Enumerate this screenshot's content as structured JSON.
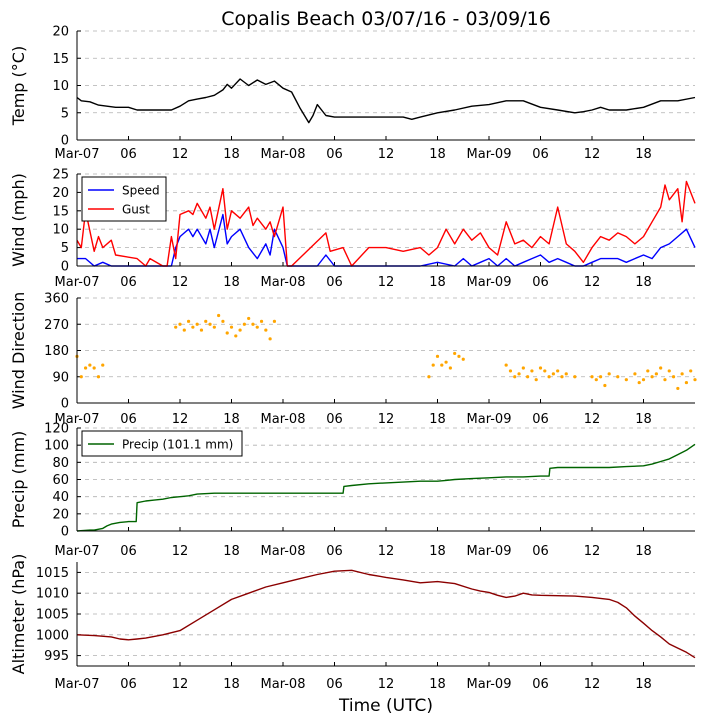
{
  "title": "Copalis Beach 03/07/16 - 03/09/16",
  "xlabel": "Time (UTC)",
  "x_tick_labels": [
    "Mar-07",
    "06",
    "12",
    "18",
    "Mar-08",
    "06",
    "12",
    "18",
    "Mar-09",
    "06",
    "12",
    "18"
  ],
  "x_tick_hours": [
    0,
    6,
    12,
    18,
    24,
    30,
    36,
    42,
    48,
    54,
    60,
    66
  ],
  "x_range_hours": [
    0,
    72
  ],
  "colors": {
    "temp": "#000000",
    "speed": "#0000ff",
    "gust": "#ff0000",
    "direction": "#ffa500",
    "precip": "#006400",
    "altimeter": "#8b0000",
    "grid": "#b0b0b0"
  },
  "chart_data": [
    {
      "type": "line",
      "ylabel": "Temp ($^\\circ$C)",
      "ylabel_display": "Temp (°C)",
      "ylim": [
        0,
        20
      ],
      "yticks": [
        0,
        5,
        10,
        15,
        20
      ],
      "grid": true,
      "series": [
        {
          "key": "temp",
          "x_hours": [
            0,
            0.5,
            1.5,
            2.5,
            4.5,
            6,
            7,
            9,
            11,
            12,
            13,
            14,
            15,
            16,
            17,
            17.5,
            18,
            19,
            20,
            21,
            22,
            23,
            24,
            25,
            26,
            26.5,
            27,
            27.5,
            28,
            29,
            30,
            32,
            34,
            36,
            38,
            39,
            40,
            42,
            44,
            46,
            48,
            50,
            52,
            54,
            56,
            58,
            59,
            60,
            61,
            62,
            64,
            66,
            68,
            70,
            72
          ],
          "values": [
            7.8,
            7.2,
            7.0,
            6.4,
            6.0,
            6.0,
            5.5,
            5.5,
            5.5,
            6.2,
            7.2,
            7.5,
            7.8,
            8.2,
            9.2,
            10.2,
            9.5,
            11.2,
            10.0,
            11.0,
            10.2,
            10.8,
            9.5,
            8.8,
            5.8,
            4.5,
            3.2,
            4.5,
            6.5,
            4.5,
            4.2,
            4.2,
            4.2,
            4.2,
            4.2,
            3.8,
            4.2,
            5.0,
            5.5,
            6.2,
            6.5,
            7.2,
            7.2,
            6.0,
            5.5,
            5.0,
            5.2,
            5.5,
            6.0,
            5.5,
            5.5,
            6.0,
            7.2,
            7.2,
            7.8
          ]
        }
      ]
    },
    {
      "type": "line",
      "ylabel": "Wind (mph)",
      "ylim": [
        0,
        25
      ],
      "yticks": [
        0,
        5,
        10,
        15,
        20,
        25
      ],
      "grid": true,
      "legend": "upper-left",
      "series": [
        {
          "key": "speed",
          "name": "Speed",
          "x_hours": [
            0,
            1,
            2,
            3,
            4,
            5,
            6,
            8,
            10,
            11,
            11.5,
            12,
            12.5,
            13,
            13.5,
            14,
            15,
            15.5,
            16,
            17,
            17.5,
            18,
            19,
            20,
            21,
            22,
            22.5,
            23,
            24,
            24.5,
            25,
            26,
            27,
            28,
            29,
            30,
            34,
            38,
            40,
            42,
            44,
            45,
            46,
            47,
            48,
            49,
            50,
            51,
            52,
            53,
            54,
            55,
            56,
            57,
            58,
            59,
            60,
            61,
            62,
            63,
            64,
            65,
            66,
            67,
            68,
            69,
            70,
            71,
            72
          ],
          "values": [
            2,
            2,
            0,
            1,
            0,
            0,
            0,
            0,
            0,
            0,
            5,
            8,
            9,
            10,
            8,
            10,
            6,
            10,
            5,
            14,
            6,
            8,
            10,
            5,
            2,
            6,
            3,
            10,
            5,
            0,
            0,
            0,
            0,
            0,
            3,
            0,
            0,
            0,
            0,
            1,
            0,
            2,
            0,
            1,
            2,
            0,
            2,
            0,
            1,
            2,
            3,
            1,
            2,
            1,
            0,
            0,
            1,
            2,
            2,
            2,
            1,
            2,
            3,
            2,
            5,
            6,
            8,
            10,
            5
          ]
        },
        {
          "key": "gust",
          "name": "Gust",
          "x_hours": [
            0,
            0.5,
            1,
            2,
            2.5,
            3,
            4,
            4.5,
            7,
            8,
            8.5,
            10,
            10.5,
            11,
            11.5,
            12,
            13,
            13.5,
            14,
            15,
            15.5,
            16,
            17,
            17.5,
            18,
            19,
            20,
            20.5,
            21,
            22,
            22.5,
            23,
            24,
            24.5,
            25,
            29,
            29.5,
            31,
            32,
            34,
            36,
            38,
            40,
            41,
            42,
            43,
            44,
            45,
            46,
            47,
            48,
            49,
            50,
            51,
            52,
            53,
            54,
            55,
            56,
            57,
            58,
            59,
            60,
            61,
            62,
            63,
            64,
            65,
            66,
            67,
            68,
            68.5,
            69,
            70,
            70.5,
            71,
            72
          ],
          "values": [
            7,
            5,
            15,
            4,
            8,
            5,
            7,
            3,
            2,
            0,
            2,
            0,
            0,
            8,
            2,
            14,
            15,
            14,
            17,
            13,
            16,
            10,
            21,
            10,
            15,
            13,
            16,
            11,
            13,
            10,
            12,
            8,
            16,
            0,
            0,
            9,
            4,
            5,
            0,
            5,
            5,
            4,
            5,
            3,
            5,
            10,
            6,
            10,
            7,
            9,
            5,
            3,
            12,
            6,
            7,
            5,
            8,
            6,
            16,
            6,
            4,
            1,
            5,
            8,
            7,
            9,
            8,
            6,
            8,
            12,
            16,
            22,
            18,
            21,
            12,
            23,
            17
          ]
        }
      ]
    },
    {
      "type": "scatter",
      "ylabel": "Wind Direction",
      "ylim": [
        0,
        360
      ],
      "yticks": [
        0,
        90,
        180,
        270,
        360
      ],
      "grid": true,
      "series": [
        {
          "key": "direction",
          "x_hours": [
            0,
            0.5,
            1,
            1.5,
            2,
            2.5,
            3,
            11.5,
            12,
            12.5,
            13,
            13.5,
            14,
            14.5,
            15,
            15.5,
            16,
            16.5,
            17,
            17.5,
            18,
            18.5,
            19,
            19.5,
            20,
            20.5,
            21,
            21.5,
            22,
            22.5,
            23,
            41,
            41.5,
            42,
            42.5,
            43,
            43.5,
            44,
            44.5,
            45,
            50,
            50.5,
            51,
            51.5,
            52,
            52.5,
            53,
            53.5,
            54,
            54.5,
            55,
            55.5,
            56,
            56.5,
            57,
            58,
            60,
            60.5,
            61,
            61.5,
            62,
            63,
            64,
            65,
            65.5,
            66,
            66.5,
            67,
            67.5,
            68,
            68.5,
            69,
            69.5,
            70,
            70.5,
            71,
            71.5,
            72
          ],
          "values": [
            160,
            90,
            120,
            130,
            120,
            90,
            130,
            260,
            270,
            250,
            280,
            260,
            270,
            250,
            280,
            270,
            260,
            300,
            280,
            240,
            260,
            230,
            250,
            270,
            290,
            270,
            260,
            280,
            250,
            220,
            280,
            90,
            130,
            160,
            130,
            140,
            120,
            170,
            160,
            150,
            130,
            110,
            90,
            100,
            120,
            90,
            110,
            80,
            120,
            110,
            90,
            100,
            110,
            90,
            100,
            90,
            90,
            80,
            90,
            60,
            100,
            90,
            80,
            100,
            70,
            80,
            110,
            90,
            100,
            120,
            80,
            110,
            90,
            50,
            100,
            70,
            110,
            80
          ]
        }
      ]
    },
    {
      "type": "line",
      "ylabel": "Precip (mm)",
      "ylim": [
        0,
        120
      ],
      "yticks": [
        0,
        20,
        40,
        60,
        80,
        100,
        120
      ],
      "grid": true,
      "legend": "upper-left",
      "series": [
        {
          "key": "precip",
          "name": "Precip (101.1 mm)",
          "x_hours": [
            0,
            1.5,
            2,
            3,
            3.5,
            4,
            5,
            6,
            6.9,
            7,
            8,
            9,
            10,
            11,
            12,
            13,
            14,
            16,
            20,
            24,
            28,
            31,
            31.1,
            32,
            34,
            36,
            38,
            40,
            42,
            43,
            44,
            46,
            48,
            50,
            52,
            54,
            55,
            55.1,
            56,
            58,
            60,
            62,
            64,
            66,
            67,
            68,
            69,
            70,
            71,
            72
          ],
          "values": [
            0,
            1,
            1,
            3,
            6,
            8,
            10,
            11,
            11,
            33,
            35,
            36,
            37,
            39,
            40,
            41,
            43,
            44,
            44,
            44,
            44,
            44,
            52,
            53,
            55,
            56,
            57,
            58,
            58,
            59,
            60,
            61,
            62,
            63,
            63,
            64,
            64,
            73,
            74,
            74,
            74,
            74,
            75,
            76,
            78,
            81,
            84,
            89,
            94,
            101
          ]
        }
      ]
    },
    {
      "type": "line",
      "ylabel": "Altimeter (hPa)",
      "ylim": [
        992.5,
        1017.5
      ],
      "yticks": [
        995,
        1000,
        1005,
        1010,
        1015
      ],
      "grid": true,
      "series": [
        {
          "key": "altimeter",
          "x_hours": [
            0,
            2,
            4,
            5,
            6,
            7,
            8,
            10,
            12,
            14,
            16,
            18,
            20,
            22,
            24,
            26,
            28,
            30,
            32,
            34,
            36,
            38,
            40,
            42,
            44,
            46,
            47,
            48,
            49,
            50,
            51,
            52,
            53,
            54,
            56,
            58,
            60,
            62,
            63,
            64,
            65,
            66,
            67,
            68,
            69,
            70,
            71,
            72
          ],
          "values": [
            1000,
            999.8,
            999.5,
            999,
            998.8,
            999,
            999.2,
            1000,
            1001,
            1003.5,
            1006,
            1008.5,
            1010,
            1011.5,
            1012.5,
            1013.5,
            1014.5,
            1015.3,
            1015.5,
            1014.5,
            1013.8,
            1013.2,
            1012.5,
            1012.8,
            1012.3,
            1011,
            1010.5,
            1010.2,
            1009.5,
            1009,
            1009.3,
            1010,
            1009.6,
            1009.5,
            1009.4,
            1009.3,
            1009,
            1008.5,
            1007.8,
            1006.5,
            1004.5,
            1002.8,
            1001,
            999.5,
            997.8,
            996.8,
            995.8,
            994.5
          ]
        }
      ]
    }
  ]
}
